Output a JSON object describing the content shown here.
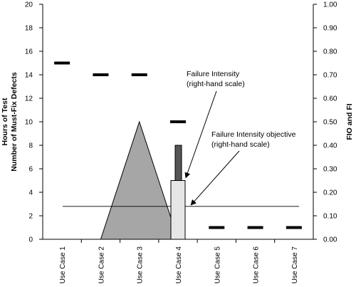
{
  "chart_data": {
    "type": "bar",
    "categories": [
      "Use Case 1",
      "Use Case 2",
      "Use Case 3",
      "Use Case 4",
      "Use Case 5",
      "Use Case 6",
      "Use Case 7"
    ],
    "left_axis": {
      "label_lines": [
        "Hours of Test",
        "Number of Must-Fix Defects"
      ],
      "ylim": [
        0,
        20
      ],
      "ticks": [
        0,
        2,
        4,
        6,
        8,
        10,
        12,
        14,
        16,
        18,
        20
      ]
    },
    "right_axis": {
      "label": "FIO and FI",
      "ylim": [
        0,
        1.0
      ],
      "ticks": [
        "0.00",
        "0.10",
        "0.20",
        "0.30",
        "0.40",
        "0.50",
        "0.60",
        "0.70",
        "0.80",
        "0.90",
        "1.00"
      ]
    },
    "series": [
      {
        "kind": "dash-markers",
        "axis": "left",
        "points": [
          {
            "category": "Use Case 1",
            "value": 15
          },
          {
            "category": "Use Case 2",
            "value": 14
          },
          {
            "category": "Use Case 3",
            "value": 14
          },
          {
            "category": "Use Case 4",
            "value": 10
          },
          {
            "category": "Use Case 5",
            "value": 1
          },
          {
            "category": "Use Case 6",
            "value": 1
          },
          {
            "category": "Use Case 7",
            "value": 1
          }
        ]
      },
      {
        "kind": "area",
        "axis": "left",
        "color": "#a6a6a6",
        "points": [
          {
            "category": "Use Case 2",
            "value": 0
          },
          {
            "category": "Use Case 3",
            "value": 10
          },
          {
            "category": "Use Case 4",
            "value": 0
          }
        ]
      },
      {
        "kind": "bar",
        "axis": "left",
        "color": "#555555",
        "points": [
          {
            "category": "Use Case 4",
            "value": 8
          }
        ]
      },
      {
        "kind": "bar",
        "axis": "right",
        "color": "#e6e6e6",
        "points": [
          {
            "category": "Use Case 4",
            "value": 0.25
          }
        ]
      },
      {
        "kind": "hline",
        "axis": "right",
        "value": 0.14
      }
    ],
    "annotations": [
      {
        "lines": [
          "Failure Intensity",
          "(right-hand scale)"
        ],
        "target": "Use Case 4",
        "target_value": 0.25
      },
      {
        "lines": [
          "Failure Intensity objective",
          "(right-hand scale)"
        ],
        "target": "Use Case 5",
        "target_value": 0.14
      }
    ],
    "grid": false
  }
}
